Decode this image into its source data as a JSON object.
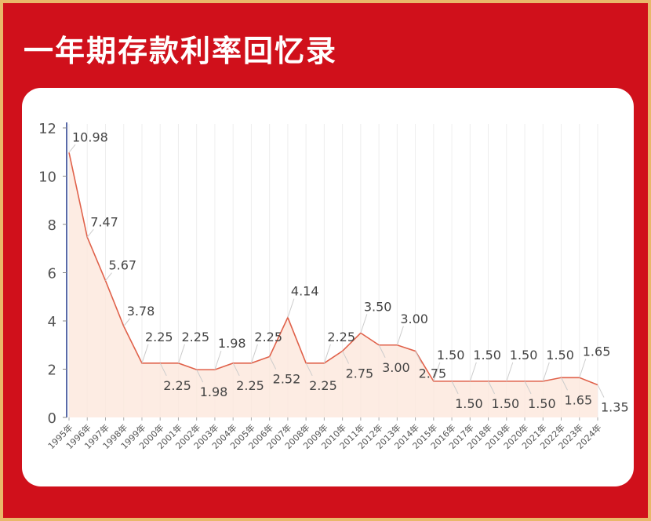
{
  "title": "一年期存款利率回忆录",
  "chart_data": {
    "type": "area",
    "categories": [
      "1995年",
      "1996年",
      "1997年",
      "1998年",
      "1999年",
      "2000年",
      "2001年",
      "2002年",
      "2003年",
      "2004年",
      "2005年",
      "2006年",
      "2007年",
      "2008年",
      "2009年",
      "2010年",
      "2011年",
      "2012年",
      "2013年",
      "2014年",
      "2015年",
      "2016年",
      "2017年",
      "2018年",
      "2019年",
      "2020年",
      "2021年",
      "2022年",
      "2023年",
      "2024年"
    ],
    "values": [
      10.98,
      7.47,
      5.67,
      3.78,
      2.25,
      2.25,
      2.25,
      1.98,
      1.98,
      2.25,
      2.25,
      2.52,
      4.14,
      2.25,
      2.25,
      2.75,
      3.5,
      3.0,
      3.0,
      2.75,
      1.5,
      1.5,
      1.5,
      1.5,
      1.5,
      1.5,
      1.5,
      1.65,
      1.65,
      1.35
    ],
    "value_labels": [
      "10.98",
      "7.47",
      "5.67",
      "3.78",
      "2.25",
      "2.25",
      "2.25",
      "1.98",
      "1.98",
      "2.25",
      "2.25",
      "2.52",
      "4.14",
      "2.25",
      "2.25",
      "2.75",
      "3.50",
      "3.00",
      "3.00",
      "2.75",
      "1.50",
      "1.50",
      "1.50",
      "1.50",
      "1.50",
      "1.50",
      "1.50",
      "1.65",
      "1.65",
      "1.35"
    ],
    "color": "#e0614a",
    "ylim": [
      0,
      12
    ],
    "yticks": [
      0,
      2,
      4,
      6,
      8,
      10,
      12
    ],
    "grid": true
  }
}
